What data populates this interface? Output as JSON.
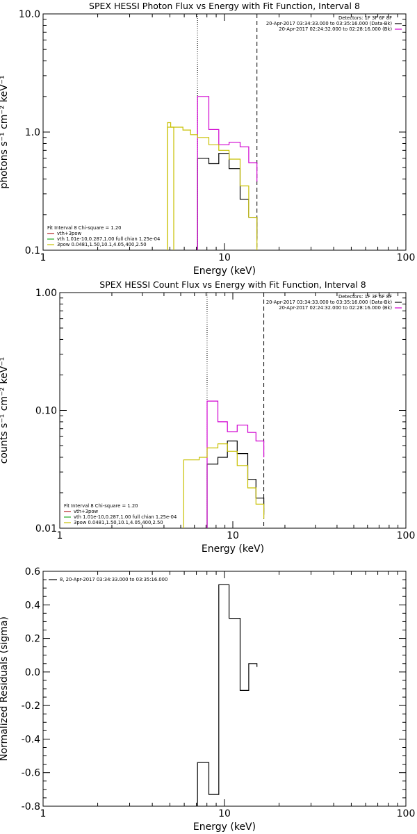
{
  "chart_data": [
    {
      "type": "line",
      "title": "SPEX HESSI Photon Flux vs Energy with Fit Function, Interval 8",
      "xlabel": "Energy (keV)",
      "ylabel": "photons s⁻¹ cm⁻² keV⁻¹",
      "xscale": "log",
      "yscale": "log",
      "xlim": [
        1,
        100
      ],
      "ylim": [
        0.1,
        10
      ],
      "xticks": [
        {
          "value": 1,
          "label": "1"
        },
        {
          "value": 10,
          "label": "10"
        },
        {
          "value": 100,
          "label": "100"
        }
      ],
      "yticks": [
        {
          "value": 0.1,
          "label": "0.1"
        },
        {
          "value": 1,
          "label": "1.0"
        },
        {
          "value": 10,
          "label": "10.0"
        }
      ],
      "vlines": [
        {
          "x": 7.1,
          "style": "dotted"
        },
        {
          "x": 15.1,
          "style": "dashed"
        }
      ],
      "legend_top_right": [
        {
          "text": "Detectors: 1F 3F 6F 8F",
          "color": ""
        },
        {
          "text": "20-Apr-2017 03:34:33.000 to 03:35:16.000 (Data-Bk)",
          "color": "#000000"
        },
        {
          "text": "20-Apr-2017 02:24:32.000 to 02:28:16.000 (Bk)",
          "color": "#d000d0"
        }
      ],
      "legend_bottom_left": [
        {
          "text": "Fit Interval  8    Chi-square = 1.20",
          "color": ""
        },
        {
          "text": "vth+3pow",
          "color": "#b22222"
        },
        {
          "text": "vth 1.01e-10,0.287,1.00  full chian 1.25e-04",
          "color": "#22aa22"
        },
        {
          "text": "3pow 0.0481,1.50,10.1,4.05,400,2.50",
          "color": "#c8c000"
        }
      ],
      "series": [
        {
          "color": "#000000",
          "edges": [
            7.1,
            8.2,
            9.3,
            10.6,
            12.2,
            13.6,
            15.1
          ],
          "values": [
            0.6,
            0.54,
            0.66,
            0.49,
            0.27,
            0.19,
            0.125
          ]
        },
        {
          "color": "#d000d0",
          "edges": [
            7.1,
            8.2,
            9.3,
            10.6,
            12.2,
            13.6,
            15.1
          ],
          "values": [
            2.0,
            1.05,
            0.78,
            0.82,
            0.75,
            0.55,
            0.38
          ]
        },
        {
          "color": "#c8c000",
          "edges": [
            4.85,
            5.9,
            6.5,
            7.1,
            8.2,
            9.3,
            10.6,
            12.2,
            13.6,
            15.1
          ],
          "values": [
            1.1,
            1.04,
            0.95,
            0.9,
            0.78,
            0.7,
            0.59,
            0.35,
            0.19,
            0.085
          ]
        },
        {
          "color": "#c8c000",
          "edges": [
            4.85,
            5.05,
            5.25
          ],
          "values": [
            1.2,
            1.1
          ]
        }
      ],
      "series_extra": []
    },
    {
      "type": "line",
      "title": "SPEX HESSI Count Flux vs Energy with Fit Function, Interval 8",
      "xlabel": "Energy (keV)",
      "ylabel": "counts s⁻¹ cm⁻² keV⁻¹",
      "xscale": "log",
      "yscale": "log",
      "xlim": [
        1,
        100
      ],
      "ylim": [
        0.01,
        1
      ],
      "xticks": [
        {
          "value": 1,
          "label": "1"
        },
        {
          "value": 10,
          "label": "10"
        },
        {
          "value": 100,
          "label": "100"
        }
      ],
      "yticks": [
        {
          "value": 0.01,
          "label": "0.01"
        },
        {
          "value": 0.1,
          "label": "0.10"
        },
        {
          "value": 1,
          "label": "1.00"
        }
      ],
      "vlines": [
        {
          "x": 7.1,
          "style": "dotted"
        },
        {
          "x": 15.1,
          "style": "dashed"
        }
      ],
      "legend_top_right": [
        {
          "text": "Detectors: 1F 3F 6F 8F",
          "color": ""
        },
        {
          "text": "20-Apr-2017 03:34:33.000 to 03:35:16.000 (Data-Bk)",
          "color": "#000000"
        },
        {
          "text": "20-Apr-2017 02:24:32.000 to 02:28:16.000 (Bk)",
          "color": "#d000d0"
        }
      ],
      "legend_bottom_left": [
        {
          "text": "Fit Interval  8    Chi-square = 1.20",
          "color": ""
        },
        {
          "text": "vth+3pow",
          "color": "#b22222"
        },
        {
          "text": "vth 1.01e-10,0.287,1.00  full chian 1.25e-04",
          "color": "#22aa22"
        },
        {
          "text": "3pow 0.0481,1.50,10.1,4.05,400,2.50",
          "color": "#c8c000"
        }
      ],
      "series": [
        {
          "color": "#000000",
          "edges": [
            7.1,
            8.2,
            9.3,
            10.6,
            12.2,
            13.6,
            15.1
          ],
          "values": [
            0.035,
            0.04,
            0.055,
            0.043,
            0.026,
            0.018,
            0.013
          ]
        },
        {
          "color": "#d000d0",
          "edges": [
            7.1,
            8.2,
            9.3,
            10.6,
            12.2,
            13.6,
            15.1
          ],
          "values": [
            0.12,
            0.08,
            0.066,
            0.075,
            0.065,
            0.055,
            0.04
          ]
        },
        {
          "color": "#c8c000",
          "edges": [
            5.2,
            6.4,
            7.1,
            8.2,
            9.3,
            10.6,
            12.2,
            13.6,
            15.1
          ],
          "values": [
            0.038,
            0.04,
            0.048,
            0.052,
            0.045,
            0.034,
            0.022,
            0.016,
            0.012
          ]
        }
      ],
      "series_extra": []
    },
    {
      "type": "line",
      "title": "",
      "xlabel": "Energy (keV)",
      "ylabel": "Normalized Residuals (sigma)",
      "xscale": "log",
      "yscale": "linear",
      "xlim": [
        1,
        100
      ],
      "ylim": [
        -0.8,
        0.6
      ],
      "xticks": [
        {
          "value": 1,
          "label": "1"
        },
        {
          "value": 10,
          "label": "10"
        },
        {
          "value": 100,
          "label": "100"
        }
      ],
      "yticks": [
        {
          "value": -0.8,
          "label": "-0.8"
        },
        {
          "value": -0.6,
          "label": "-0.6"
        },
        {
          "value": -0.4,
          "label": "-0.4"
        },
        {
          "value": -0.2,
          "label": "-0.2"
        },
        {
          "value": 0,
          "label": "0.0"
        },
        {
          "value": 0.2,
          "label": "0.2"
        },
        {
          "value": 0.4,
          "label": "0.4"
        },
        {
          "value": 0.6,
          "label": "0.6"
        }
      ],
      "vlines": [],
      "legend_top_right": [],
      "legend_bottom_left": [],
      "legend_top_left": [
        {
          "text": "8, 20-Apr-2017 03:34:33.000 to 03:35:16.000",
          "color": "#000000"
        }
      ],
      "series": [
        {
          "color": "#000000",
          "edges": [
            7.1,
            8.2,
            9.3,
            10.6,
            12.2,
            13.6,
            15.1
          ],
          "values": [
            -0.54,
            -0.73,
            0.52,
            0.32,
            -0.11,
            0.05,
            0.03
          ]
        }
      ],
      "series_extra": []
    }
  ]
}
